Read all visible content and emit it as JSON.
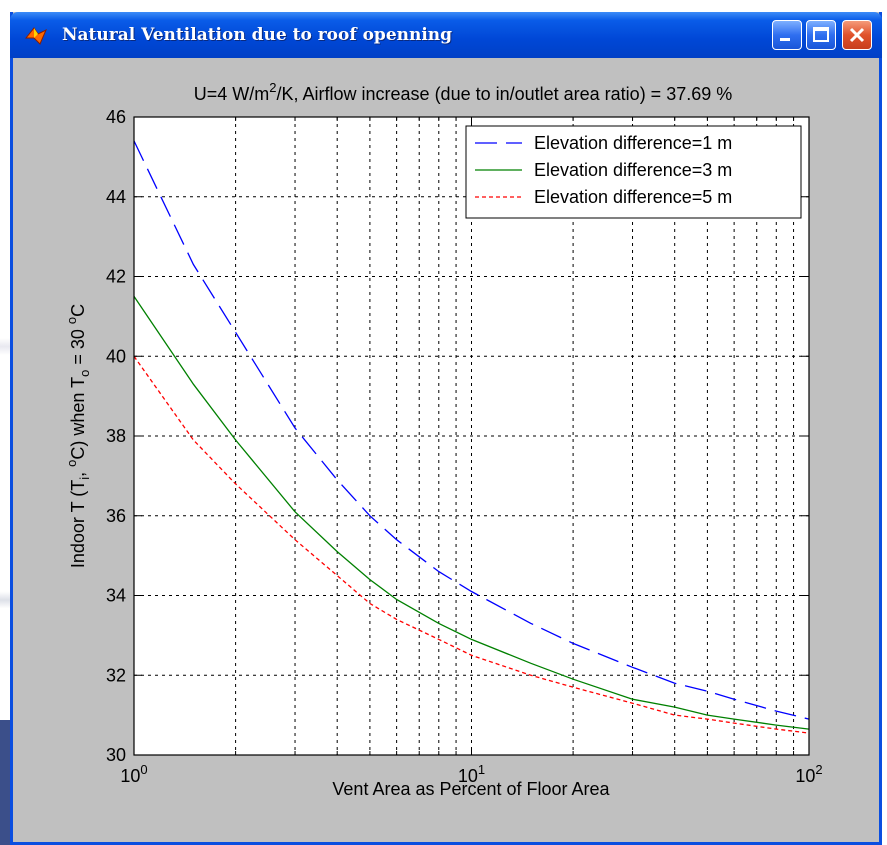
{
  "window": {
    "title": "Natural Ventilation due to roof openning",
    "controls": [
      "minimize",
      "maximize",
      "close"
    ],
    "app_icon": "matlab-icon",
    "title_bar_color": "#0047d6",
    "figure_bg_color": "#c0c0c0"
  },
  "chart_data": {
    "type": "line",
    "title_parts": {
      "prefix": "U=4 W/m",
      "sup": "2",
      "suffix": "/K, Airflow increase (due to in/outlet area ratio) = 37.69 %"
    },
    "xlabel": "Vent Area as Percent of Floor Area",
    "ylabel_parts": {
      "a": "Indoor T (T",
      "sub1": "i",
      "b": ", ",
      "sup1": "o",
      "c": "C) when T",
      "sub2": "o",
      "d": " = 30 ",
      "sup2": "o",
      "e": "C"
    },
    "x_scale": "log",
    "xlim": [
      1,
      100
    ],
    "ylim": [
      30,
      46
    ],
    "x_ticks": [
      {
        "value": 1,
        "base": "10",
        "exp": "0"
      },
      {
        "value": 10,
        "base": "10",
        "exp": "1"
      },
      {
        "value": 100,
        "base": "10",
        "exp": "2"
      }
    ],
    "y_ticks": [
      {
        "value": 30,
        "label": "30"
      },
      {
        "value": 32,
        "label": "32"
      },
      {
        "value": 34,
        "label": "34"
      },
      {
        "value": 36,
        "label": "36"
      },
      {
        "value": 38,
        "label": "38"
      },
      {
        "value": 40,
        "label": "40"
      },
      {
        "value": 42,
        "label": "42"
      },
      {
        "value": 44,
        "label": "44"
      },
      {
        "value": 46,
        "label": "46"
      }
    ],
    "grid": true,
    "legend_position": "top-right",
    "series": [
      {
        "name": "Elevation difference=1 m",
        "color": "#0000ff",
        "style": "dashed-long",
        "x": [
          1,
          1.5,
          2,
          3,
          4,
          5,
          6,
          8,
          10,
          15,
          20,
          30,
          40,
          50,
          60,
          80,
          100
        ],
        "y": [
          45.4,
          42.3,
          40.6,
          38.2,
          36.9,
          36.0,
          35.4,
          34.6,
          34.1,
          33.3,
          32.8,
          32.2,
          31.8,
          31.6,
          31.4,
          31.1,
          30.9
        ]
      },
      {
        "name": "Elevation difference=3 m",
        "color": "#008000",
        "style": "solid",
        "x": [
          1,
          1.5,
          2,
          3,
          4,
          5,
          6,
          8,
          10,
          15,
          20,
          30,
          40,
          50,
          60,
          80,
          100
        ],
        "y": [
          41.5,
          39.3,
          37.9,
          36.1,
          35.1,
          34.4,
          33.9,
          33.3,
          32.9,
          32.3,
          31.9,
          31.4,
          31.2,
          31.0,
          30.9,
          30.75,
          30.65
        ]
      },
      {
        "name": "Elevation difference=5 m",
        "color": "#ff0000",
        "style": "dotted",
        "x": [
          1,
          1.5,
          2,
          3,
          4,
          5,
          6,
          8,
          10,
          15,
          20,
          30,
          40,
          50,
          60,
          80,
          100
        ],
        "y": [
          40.0,
          37.9,
          36.8,
          35.4,
          34.5,
          33.8,
          33.4,
          32.9,
          32.5,
          32.0,
          31.7,
          31.3,
          31.0,
          30.9,
          30.8,
          30.65,
          30.55
        ]
      }
    ]
  }
}
